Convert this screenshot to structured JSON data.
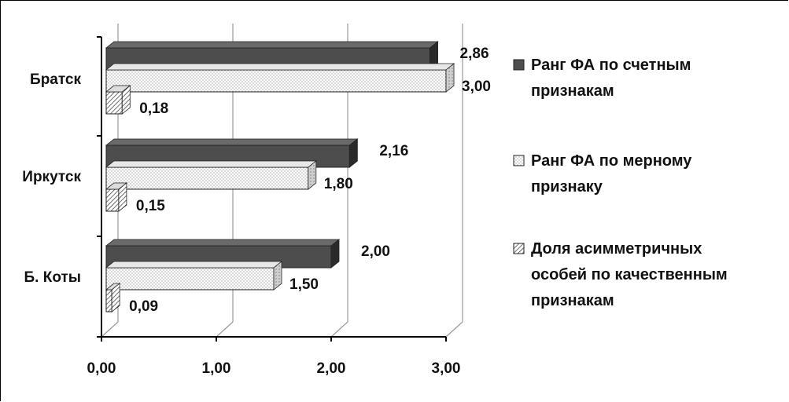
{
  "chart_data": {
    "type": "bar",
    "orientation": "horizontal",
    "style": "3d-clustered-bar",
    "categories": [
      "Братск",
      "Иркутск",
      "Б. Коты"
    ],
    "series": [
      {
        "name": "Ранг ФА по счетным признакам",
        "values": [
          2.86,
          2.16,
          2.0
        ],
        "pattern": "solid-dark",
        "color": "#4d4d4d"
      },
      {
        "name": "Ранг ФА по мерному признаку",
        "values": [
          3.0,
          1.8,
          1.5
        ],
        "pattern": "dotted",
        "color": "#f5f5f5"
      },
      {
        "name": "Доля асимметричных особей по качественным признакам",
        "values": [
          0.18,
          0.15,
          0.09
        ],
        "pattern": "hatched",
        "color": "#ffffff"
      }
    ],
    "data_labels": [
      [
        "2,86",
        "2,16",
        "2,00"
      ],
      [
        "3,00",
        "1,80",
        "1,50"
      ],
      [
        "0,18",
        "0,15",
        "0,09"
      ]
    ],
    "x_ticks": [
      0,
      1,
      2,
      3
    ],
    "x_tick_labels": [
      "0,00",
      "1,00",
      "2,00",
      "3,00"
    ],
    "xlim": [
      0,
      3
    ],
    "grid": true,
    "legend_position": "right",
    "legend_lines": [
      [
        "Ранг ФА по счетным",
        "признакам"
      ],
      [
        "Ранг ФА по мерному",
        "признаку"
      ],
      [
        "Доля асимметричных",
        "особей по качественным",
        "признакам"
      ]
    ]
  }
}
